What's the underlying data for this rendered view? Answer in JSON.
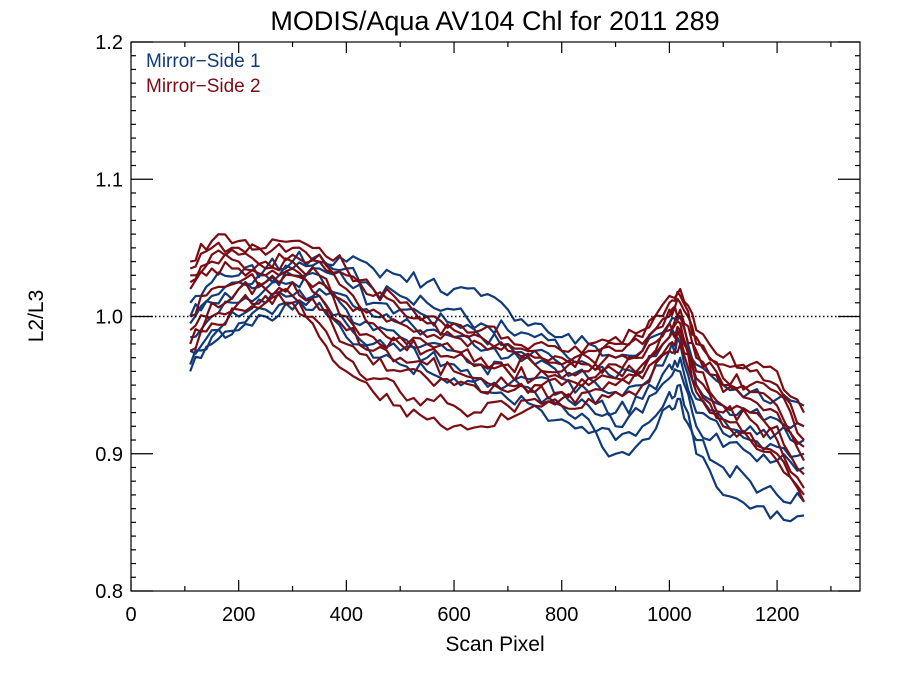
{
  "chart_data": {
    "type": "line",
    "title": "MODIS/Aqua AV104 Chl for 2011 289",
    "xlabel": "Scan Pixel",
    "ylabel": "L2/L3",
    "xlim": [
      0,
      1354
    ],
    "ylim": [
      0.8,
      1.2
    ],
    "xticks": [
      "0",
      "200",
      "400",
      "600",
      "800",
      "1000",
      "1200"
    ],
    "yticks": [
      "0.8",
      "0.9",
      "1.0",
      "1.1",
      "1.2"
    ],
    "reference_line": {
      "y": 1.0,
      "style": "dotted"
    },
    "legend_position": "top-left",
    "x": [
      110,
      150,
      200,
      250,
      300,
      350,
      400,
      450,
      500,
      550,
      600,
      650,
      700,
      750,
      800,
      850,
      900,
      950,
      1000,
      1020,
      1050,
      1100,
      1150,
      1200,
      1250
    ],
    "groups": [
      {
        "name": "Mirror−Side 1",
        "color": "#103b78",
        "series": [
          {
            "values": [
              1.01,
              1.025,
              1.03,
              1.035,
              1.04,
              1.045,
              1.04,
              1.035,
              1.03,
              1.025,
              1.02,
              1.015,
              1.005,
              0.995,
              0.985,
              0.98,
              0.97,
              0.975,
              0.995,
              1.0,
              0.965,
              0.95,
              0.945,
              0.94,
              0.935
            ]
          },
          {
            "values": [
              1.0,
              1.015,
              1.025,
              1.03,
              1.035,
              1.04,
              1.035,
              1.02,
              1.015,
              1.01,
              1.005,
              0.995,
              0.99,
              0.985,
              0.975,
              0.965,
              0.955,
              0.96,
              0.985,
              0.99,
              0.95,
              0.935,
              0.93,
              0.925,
              0.92
            ]
          },
          {
            "values": [
              0.995,
              1.01,
              1.02,
              1.025,
              1.03,
              1.035,
              1.025,
              1.01,
              1.005,
              1.0,
              0.995,
              0.985,
              0.98,
              0.975,
              0.965,
              0.955,
              0.945,
              0.95,
              0.975,
              0.98,
              0.94,
              0.925,
              0.92,
              0.915,
              0.91
            ]
          },
          {
            "values": [
              0.985,
              1.0,
              1.01,
              1.02,
              1.025,
              1.03,
              1.015,
              1.0,
              0.995,
              0.99,
              0.985,
              0.975,
              0.97,
              0.965,
              0.955,
              0.945,
              0.93,
              0.94,
              0.965,
              0.97,
              0.93,
              0.915,
              0.91,
              0.905,
              0.9
            ]
          },
          {
            "values": [
              0.975,
              0.99,
              1.0,
              1.01,
              1.015,
              1.02,
              1.005,
              0.99,
              0.985,
              0.98,
              0.975,
              0.965,
              0.96,
              0.955,
              0.945,
              0.935,
              0.92,
              0.93,
              0.955,
              0.96,
              0.92,
              0.905,
              0.9,
              0.895,
              0.89
            ]
          },
          {
            "values": [
              0.965,
              0.985,
              0.995,
              1.005,
              1.01,
              1.015,
              0.995,
              0.98,
              0.975,
              0.97,
              0.965,
              0.955,
              0.95,
              0.945,
              0.935,
              0.925,
              0.91,
              0.92,
              0.945,
              0.95,
              0.91,
              0.89,
              0.88,
              0.87,
              0.865
            ]
          },
          {
            "values": [
              0.96,
              0.98,
              0.99,
              1.0,
              1.005,
              1.01,
              0.985,
              0.97,
              0.965,
              0.96,
              0.955,
              0.945,
              0.94,
              0.935,
              0.925,
              0.915,
              0.9,
              0.91,
              0.935,
              0.94,
              0.9,
              0.87,
              0.86,
              0.858,
              0.855
            ]
          }
        ]
      },
      {
        "name": "Mirror−Side 2",
        "color": "#7a0d14",
        "series": [
          {
            "values": [
              1.04,
              1.055,
              1.055,
              1.05,
              1.055,
              1.05,
              1.035,
              1.02,
              1.01,
              1.0,
              0.995,
              0.99,
              0.985,
              0.98,
              0.975,
              0.98,
              0.985,
              0.99,
              1.015,
              1.02,
              0.99,
              0.97,
              0.965,
              0.96,
              0.93
            ]
          },
          {
            "values": [
              1.035,
              1.05,
              1.05,
              1.045,
              1.05,
              1.045,
              1.03,
              1.015,
              1.005,
              0.995,
              0.99,
              0.985,
              0.98,
              0.975,
              0.97,
              0.975,
              0.98,
              0.985,
              1.01,
              1.015,
              0.985,
              0.965,
              0.96,
              0.95,
              0.92
            ]
          },
          {
            "values": [
              1.03,
              1.045,
              1.045,
              1.04,
              1.045,
              1.04,
              1.02,
              1.005,
              0.995,
              0.985,
              0.985,
              0.98,
              0.975,
              0.97,
              0.965,
              0.97,
              0.975,
              0.98,
              1.005,
              1.01,
              0.98,
              0.955,
              0.95,
              0.945,
              0.91
            ]
          },
          {
            "values": [
              1.025,
              1.04,
              1.04,
              1.035,
              1.04,
              1.03,
              1.01,
              0.995,
              0.985,
              0.98,
              0.975,
              0.97,
              0.965,
              0.965,
              0.96,
              0.965,
              0.97,
              0.975,
              1.0,
              1.005,
              0.975,
              0.95,
              0.945,
              0.935,
              0.905
            ]
          },
          {
            "values": [
              1.02,
              1.035,
              1.035,
              1.03,
              1.035,
              1.025,
              1.0,
              0.985,
              0.98,
              0.975,
              0.97,
              0.965,
              0.96,
              0.955,
              0.955,
              0.96,
              0.965,
              0.97,
              0.995,
              1.0,
              0.97,
              0.945,
              0.94,
              0.93,
              0.895
            ]
          },
          {
            "values": [
              1.0,
              1.02,
              1.025,
              1.025,
              1.03,
              1.015,
              0.99,
              0.975,
              0.97,
              0.965,
              0.96,
              0.955,
              0.95,
              0.95,
              0.95,
              0.955,
              0.96,
              0.965,
              0.99,
              0.995,
              0.96,
              0.935,
              0.93,
              0.92,
              0.885
            ]
          },
          {
            "values": [
              0.99,
              1.01,
              1.02,
              1.02,
              1.025,
              1.005,
              0.98,
              0.965,
              0.96,
              0.955,
              0.95,
              0.945,
              0.945,
              0.945,
              0.945,
              0.95,
              0.955,
              0.96,
              0.985,
              0.99,
              0.955,
              0.93,
              0.925,
              0.91,
              0.875
            ]
          },
          {
            "values": [
              0.98,
              1.0,
              1.01,
              1.015,
              1.015,
              0.995,
              0.97,
              0.955,
              0.945,
              0.94,
              0.935,
              0.93,
              0.935,
              0.94,
              0.94,
              0.945,
              0.95,
              0.955,
              0.98,
              0.985,
              0.95,
              0.925,
              0.915,
              0.9,
              0.87
            ]
          },
          {
            "values": [
              0.975,
              0.995,
              1.005,
              1.01,
              1.01,
              0.985,
              0.96,
              0.945,
              0.935,
              0.925,
              0.92,
              0.92,
              0.925,
              0.935,
              0.935,
              0.94,
              0.945,
              0.95,
              0.975,
              0.98,
              0.945,
              0.92,
              0.91,
              0.895,
              0.865
            ]
          }
        ]
      }
    ]
  }
}
